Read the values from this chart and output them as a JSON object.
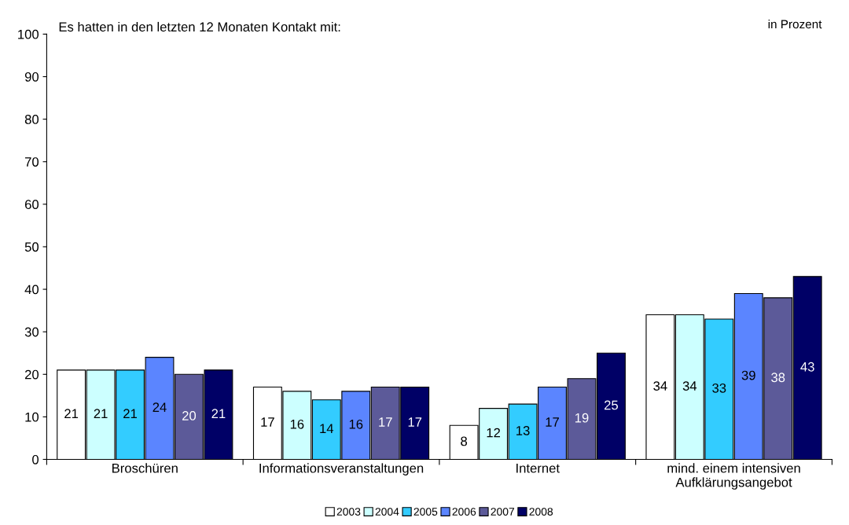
{
  "chart_data": {
    "type": "bar",
    "title": "Es hatten in den letzten 12 Monaten Kontakt mit:",
    "annotations": [
      "in Prozent"
    ],
    "categories": [
      "Broschüren",
      "Informationsveranstaltungen",
      "Internet",
      "mind. einem intensiven\nAufklärungsangebot"
    ],
    "series": [
      {
        "name": "2003",
        "color": "#ffffff",
        "values": [
          21,
          17,
          8,
          34
        ]
      },
      {
        "name": "2004",
        "color": "#ccffff",
        "values": [
          21,
          16,
          12,
          34
        ]
      },
      {
        "name": "2005",
        "color": "#33ccff",
        "values": [
          21,
          14,
          13,
          33
        ]
      },
      {
        "name": "2006",
        "color": "#5b85ff",
        "values": [
          24,
          16,
          17,
          39
        ]
      },
      {
        "name": "2007",
        "color": "#5c5a99",
        "values": [
          20,
          17,
          19,
          38
        ]
      },
      {
        "name": "2008",
        "color": "#000066",
        "values": [
          21,
          17,
          25,
          43
        ]
      }
    ],
    "ylim": [
      0,
      100
    ],
    "yticks": [
      0,
      10,
      20,
      30,
      40,
      50,
      60,
      70,
      80,
      90,
      100
    ],
    "grid": false,
    "legend": "bottom",
    "data_labels": true
  }
}
